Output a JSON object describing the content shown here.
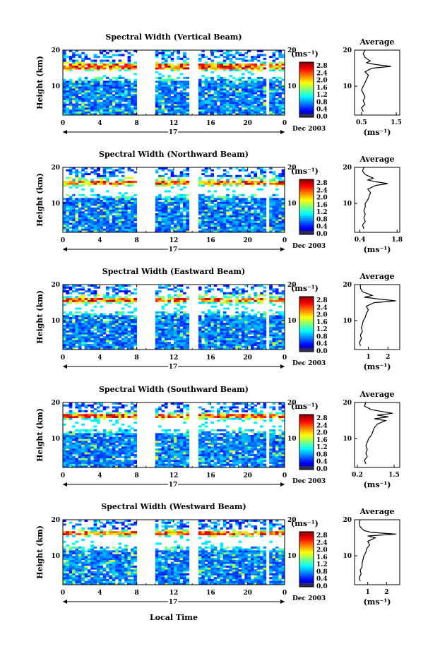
{
  "figure": {
    "x_label": "Local Time",
    "y_label": "Height (km)",
    "date_label": "Dec 2003",
    "day_label": "17",
    "colorbar_unit": "(ms⁻¹)",
    "colorbar_ticks": [
      "2.8",
      "2.4",
      "2.0",
      "1.6",
      "1.2",
      "0.8",
      "0.4",
      "0.0"
    ],
    "profile_title": "Average",
    "profile_unit": "(ms⁻¹)"
  },
  "chart_data": [
    {
      "type": "heatmap",
      "title": "Spectral Width (Vertical Beam)",
      "x_ticks": [
        "0",
        "4",
        "8",
        "12",
        "16",
        "20",
        "0"
      ],
      "y_ticks": [
        "20",
        "10"
      ],
      "xlim": [
        0,
        24
      ],
      "ylim": [
        2,
        20
      ],
      "colorbar_range": [
        0.0,
        3.0
      ],
      "data_gaps_hours": [
        [
          8.0,
          10.0
        ],
        [
          13.8,
          14.7
        ],
        [
          21.9,
          22.3
        ]
      ],
      "tropopause_km": 15.5,
      "average_profile": {
        "x_ticks": [
          "0.5",
          "1.5"
        ],
        "xlim": [
          0.3,
          1.6
        ],
        "points": [
          [
            3,
            0.55
          ],
          [
            4,
            0.5
          ],
          [
            5,
            0.6
          ],
          [
            6,
            0.55
          ],
          [
            7,
            0.6
          ],
          [
            8,
            0.55
          ],
          [
            9,
            0.5
          ],
          [
            10,
            0.55
          ],
          [
            11,
            0.6
          ],
          [
            12,
            0.65
          ],
          [
            13,
            0.7
          ],
          [
            14,
            0.6
          ],
          [
            15,
            0.8
          ],
          [
            15.5,
            1.35
          ],
          [
            16,
            0.9
          ],
          [
            16.5,
            0.65
          ],
          [
            17,
            0.75
          ],
          [
            18,
            0.6
          ],
          [
            19,
            0.55
          ],
          [
            20,
            0.6
          ]
        ]
      }
    },
    {
      "type": "heatmap",
      "title": "Spectral Width (Northward Beam)",
      "x_ticks": [
        "0",
        "4",
        "8",
        "12",
        "16",
        "20",
        "0"
      ],
      "y_ticks": [
        "20",
        "10"
      ],
      "xlim": [
        0,
        24
      ],
      "ylim": [
        2,
        20
      ],
      "colorbar_range": [
        0.0,
        3.0
      ],
      "data_gaps_hours": [
        [
          8.0,
          10.0
        ],
        [
          13.8,
          14.7
        ],
        [
          21.9,
          22.3
        ]
      ],
      "tropopause_km": 16.0,
      "average_profile": {
        "x_ticks": [
          "0.4",
          "1.8"
        ],
        "xlim": [
          0.2,
          1.9
        ],
        "points": [
          [
            3,
            0.55
          ],
          [
            4,
            0.5
          ],
          [
            5,
            0.6
          ],
          [
            6,
            0.55
          ],
          [
            7,
            0.6
          ],
          [
            8,
            0.55
          ],
          [
            9,
            0.6
          ],
          [
            10,
            0.6
          ],
          [
            11,
            0.7
          ],
          [
            12,
            0.75
          ],
          [
            13,
            0.8
          ],
          [
            14,
            0.7
          ],
          [
            15,
            1.0
          ],
          [
            15.5,
            1.45
          ],
          [
            16,
            1.0
          ],
          [
            16.5,
            0.7
          ],
          [
            17,
            0.9
          ],
          [
            18,
            0.6
          ],
          [
            19,
            0.5
          ],
          [
            20,
            0.55
          ]
        ]
      }
    },
    {
      "type": "heatmap",
      "title": "Spectral Width (Eastward Beam)",
      "x_ticks": [
        "0",
        "4",
        "8",
        "12",
        "16",
        "20",
        "0"
      ],
      "y_ticks": [
        "20",
        "10"
      ],
      "xlim": [
        0,
        24
      ],
      "ylim": [
        2,
        20
      ],
      "colorbar_range": [
        0.0,
        3.0
      ],
      "data_gaps_hours": [
        [
          8.0,
          10.0
        ],
        [
          13.8,
          14.7
        ],
        [
          21.9,
          22.3
        ]
      ],
      "tropopause_km": 16.0,
      "average_profile": {
        "x_ticks": [
          "1",
          "2"
        ],
        "xlim": [
          0.3,
          2.6
        ],
        "points": [
          [
            3,
            0.6
          ],
          [
            4,
            0.55
          ],
          [
            5,
            0.65
          ],
          [
            6,
            0.6
          ],
          [
            7,
            0.7
          ],
          [
            8,
            0.65
          ],
          [
            9,
            0.7
          ],
          [
            10,
            0.75
          ],
          [
            11,
            0.85
          ],
          [
            12,
            0.9
          ],
          [
            13,
            1.0
          ],
          [
            14,
            0.9
          ],
          [
            15,
            1.3
          ],
          [
            15.5,
            2.4
          ],
          [
            16,
            1.5
          ],
          [
            16.5,
            0.8
          ],
          [
            17,
            1.2
          ],
          [
            18,
            0.7
          ],
          [
            19,
            0.6
          ],
          [
            20,
            0.6
          ]
        ]
      }
    },
    {
      "type": "heatmap",
      "title": "Spectral Width (Southward Beam)",
      "x_ticks": [
        "0",
        "4",
        "8",
        "12",
        "16",
        "20",
        "0"
      ],
      "y_ticks": [
        "20",
        "10"
      ],
      "xlim": [
        0,
        24
      ],
      "ylim": [
        2,
        20
      ],
      "colorbar_range": [
        0.0,
        3.0
      ],
      "data_gaps_hours": [
        [
          8.0,
          10.0
        ],
        [
          13.8,
          14.7
        ],
        [
          21.9,
          22.3
        ]
      ],
      "tropopause_km": 16.5,
      "average_profile": {
        "x_ticks": [
          "0.2",
          "1.5"
        ],
        "xlim": [
          0.1,
          1.7
        ],
        "points": [
          [
            3,
            0.5
          ],
          [
            4,
            0.45
          ],
          [
            5,
            0.55
          ],
          [
            6,
            0.5
          ],
          [
            7,
            0.55
          ],
          [
            8,
            0.5
          ],
          [
            9,
            0.55
          ],
          [
            10,
            0.6
          ],
          [
            11,
            0.7
          ],
          [
            12,
            0.75
          ],
          [
            13,
            0.8
          ],
          [
            14,
            0.9
          ],
          [
            15,
            1.2
          ],
          [
            15.5,
            0.8
          ],
          [
            16,
            1.3
          ],
          [
            16.5,
            0.9
          ],
          [
            17,
            1.45
          ],
          [
            18,
            0.7
          ],
          [
            19,
            0.45
          ],
          [
            20,
            0.5
          ]
        ]
      }
    },
    {
      "type": "heatmap",
      "title": "Spectral Width (Westward Beam)",
      "x_ticks": [
        "0",
        "4",
        "8",
        "12",
        "16",
        "20",
        "0"
      ],
      "y_ticks": [
        "20",
        "10"
      ],
      "xlim": [
        0,
        24
      ],
      "ylim": [
        2,
        20
      ],
      "colorbar_range": [
        0.0,
        3.0
      ],
      "data_gaps_hours": [
        [
          8.0,
          10.0
        ],
        [
          13.8,
          14.7
        ],
        [
          21.9,
          22.3
        ]
      ],
      "tropopause_km": 16.5,
      "average_profile": {
        "x_ticks": [
          "1",
          "2"
        ],
        "xlim": [
          0.3,
          2.7
        ],
        "points": [
          [
            3,
            0.6
          ],
          [
            4,
            0.55
          ],
          [
            5,
            0.65
          ],
          [
            6,
            0.6
          ],
          [
            7,
            0.7
          ],
          [
            8,
            0.7
          ],
          [
            9,
            0.75
          ],
          [
            10,
            0.8
          ],
          [
            11,
            0.9
          ],
          [
            12,
            0.95
          ],
          [
            13,
            1.1
          ],
          [
            14,
            1.0
          ],
          [
            15,
            1.4
          ],
          [
            15.5,
            1.0
          ],
          [
            16,
            2.5
          ],
          [
            16.5,
            1.2
          ],
          [
            17,
            0.8
          ],
          [
            18,
            0.6
          ],
          [
            19,
            0.55
          ],
          [
            20,
            0.6
          ]
        ]
      }
    }
  ]
}
